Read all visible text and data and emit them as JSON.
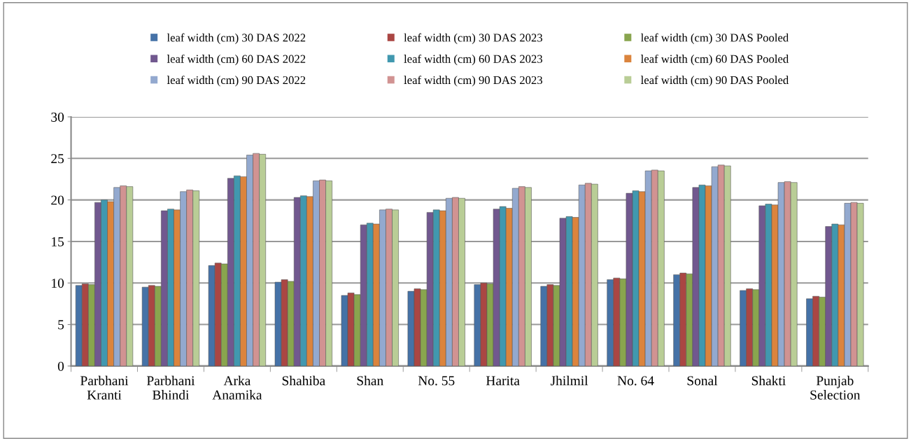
{
  "chart_data": {
    "type": "bar",
    "categories": [
      "Parbhani\nKranti",
      "Parbhani\nBhindi",
      "Arka\nAnamika",
      "Shahiba",
      "Shan",
      "No. 55",
      "Harita",
      "Jhilmil",
      "No. 64",
      "Sonal",
      "Shakti",
      "Punjab\nSelection"
    ],
    "series": [
      {
        "name": "leaf width (cm) 30 DAS 2022",
        "color": "#4572a7",
        "values": [
          9.7,
          9.5,
          12.1,
          10.1,
          8.5,
          9.0,
          9.8,
          9.6,
          10.4,
          11.0,
          9.1,
          8.1
        ]
      },
      {
        "name": "leaf width (cm) 30 DAS 2023",
        "color": "#aa4643",
        "values": [
          9.9,
          9.7,
          12.4,
          10.4,
          8.8,
          9.3,
          10.0,
          9.8,
          10.6,
          11.2,
          9.3,
          8.4
        ]
      },
      {
        "name": "leaf width (cm) 30 DAS Pooled",
        "color": "#89a54e",
        "values": [
          9.8,
          9.6,
          12.3,
          10.2,
          8.6,
          9.2,
          9.9,
          9.7,
          10.5,
          11.1,
          9.2,
          8.3
        ]
      },
      {
        "name": "leaf width (cm) 60 DAS 2022",
        "color": "#71588f",
        "values": [
          19.7,
          18.7,
          22.6,
          20.3,
          17.0,
          18.5,
          18.9,
          17.8,
          20.8,
          21.5,
          19.3,
          16.8
        ]
      },
      {
        "name": "leaf width (cm) 60 DAS 2023",
        "color": "#4198af",
        "values": [
          20.0,
          18.9,
          22.9,
          20.5,
          17.2,
          18.8,
          19.2,
          18.0,
          21.1,
          21.8,
          19.5,
          17.1
        ]
      },
      {
        "name": "leaf width (cm) 60 DAS Pooled",
        "color": "#db843d",
        "values": [
          19.8,
          18.8,
          22.8,
          20.4,
          17.1,
          18.7,
          19.0,
          17.9,
          21.0,
          21.7,
          19.4,
          17.0
        ]
      },
      {
        "name": "leaf width (cm) 90 DAS 2022",
        "color": "#93a9cf",
        "values": [
          21.5,
          21.0,
          25.4,
          22.3,
          18.8,
          20.2,
          21.4,
          21.8,
          23.5,
          24.0,
          22.1,
          19.6
        ]
      },
      {
        "name": "leaf width (cm) 90 DAS 2023",
        "color": "#d19392",
        "values": [
          21.7,
          21.2,
          25.6,
          22.4,
          18.9,
          20.3,
          21.6,
          22.0,
          23.6,
          24.2,
          22.2,
          19.7
        ]
      },
      {
        "name": "leaf width (cm) 90 DAS Pooled",
        "color": "#b9cd96",
        "values": [
          21.6,
          21.1,
          25.5,
          22.3,
          18.8,
          20.2,
          21.5,
          21.9,
          23.5,
          24.1,
          22.1,
          19.6
        ]
      }
    ],
    "ylim": [
      0,
      30
    ],
    "yticks": [
      0,
      5,
      10,
      15,
      20,
      25,
      30
    ],
    "grid": "y",
    "legend": "top"
  }
}
